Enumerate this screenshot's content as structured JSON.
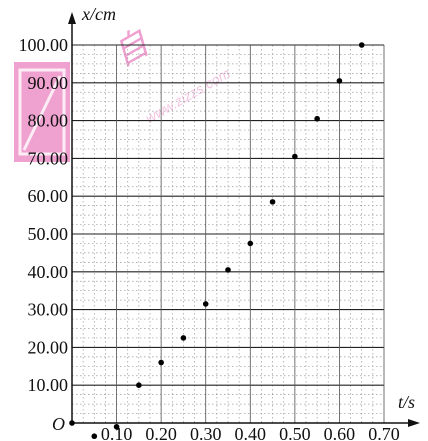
{
  "chart_data": {
    "type": "scatter",
    "title": "",
    "xlabel": "t/s",
    "ylabel": "x/cm",
    "origin_label": "O",
    "x_ticks": [
      "0.10",
      "0.20",
      "0.30",
      "0.40",
      "0.50",
      "0.60",
      "0.70"
    ],
    "y_ticks": [
      "10.00",
      "20.00",
      "30.00",
      "40.00",
      "50.00",
      "60.00",
      "70.00",
      "80.00",
      "90.00",
      "100.00"
    ],
    "xlim": [
      0,
      0.74
    ],
    "ylim": [
      0,
      100
    ],
    "grid": true,
    "series": [
      {
        "values": [
          {
            "x": 0.0,
            "y": 0.0
          },
          {
            "x": 0.05,
            "y": -3.5
          },
          {
            "x": 0.1,
            "y": -1.0
          },
          {
            "x": 0.15,
            "y": 10.0
          },
          {
            "x": 0.2,
            "y": 16.0
          },
          {
            "x": 0.25,
            "y": 22.5
          },
          {
            "x": 0.3,
            "y": 31.5
          },
          {
            "x": 0.35,
            "y": 40.5
          },
          {
            "x": 0.4,
            "y": 47.5
          },
          {
            "x": 0.45,
            "y": 58.5
          },
          {
            "x": 0.5,
            "y": 70.5
          },
          {
            "x": 0.55,
            "y": 80.5
          },
          {
            "x": 0.6,
            "y": 90.5
          },
          {
            "x": 0.65,
            "y": 100.0
          }
        ]
      }
    ]
  },
  "watermark": {
    "text": "www.zizzs.com",
    "logo_char": "自",
    "color": "#d81b8c"
  }
}
